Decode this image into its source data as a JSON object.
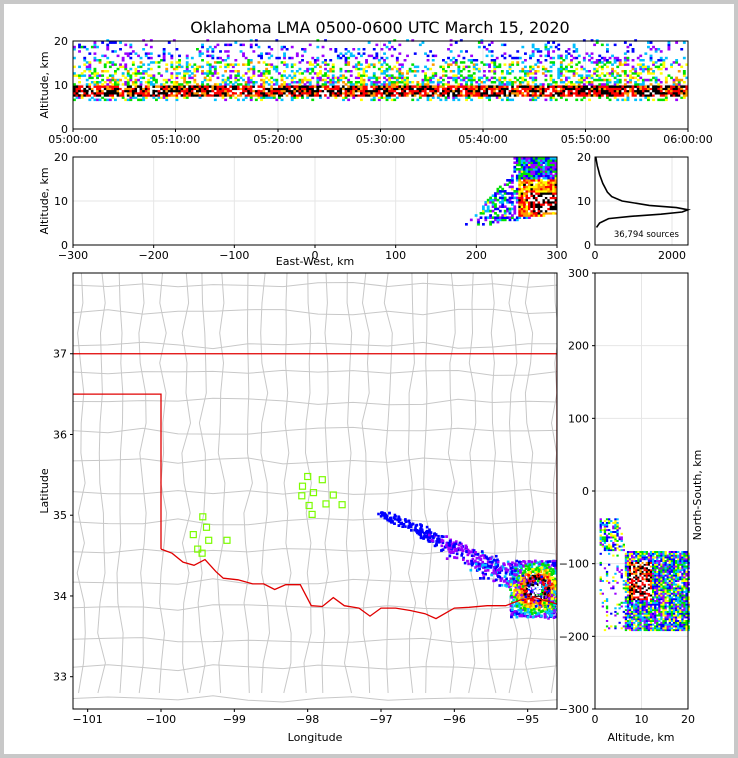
{
  "title": "Oklahoma LMA 0500-0600 UTC March 15, 2020",
  "colors": {
    "state_border": "#e00000",
    "county_lines": "#c8c8c8",
    "stations": "#7cfc00",
    "density_scale": [
      "#0000ff",
      "#9900ff",
      "#00bfff",
      "#00e000",
      "#ffff00",
      "#ff9900",
      "#ff0000",
      "#000000",
      "#ffffff"
    ]
  },
  "chart_data": [
    {
      "id": "time_altitude",
      "type": "heatmap",
      "xlabel": "",
      "ylabel": "Altitude, km",
      "xlim": [
        "05:00:00",
        "06:00:00"
      ],
      "ylim": [
        0,
        20
      ],
      "x_ticks": [
        "05:00:00",
        "05:10:00",
        "05:20:00",
        "05:30:00",
        "05:40:00",
        "05:50:00",
        "06:00:00"
      ],
      "y_ticks": [
        "0",
        "10",
        "20"
      ],
      "band_center_altitude_km": 8,
      "band_top_altitude_km": 20,
      "band_bottom_altitude_km": 6
    },
    {
      "id": "eastwest_altitude",
      "type": "heatmap",
      "xlabel": "East-West, km",
      "ylabel": "Altitude, km",
      "xlim": [
        -300,
        300
      ],
      "ylim": [
        0,
        20
      ],
      "x_ticks": [
        "−300",
        "−200",
        "−100",
        "0",
        "100",
        "200",
        "300"
      ],
      "y_ticks": [
        "0",
        "10",
        "20"
      ],
      "core_east_west_km": [
        250,
        300
      ],
      "core_altitude_km": [
        7,
        12
      ]
    },
    {
      "id": "altitude_histogram",
      "type": "line",
      "xlabel": "",
      "ylabel": "",
      "xlim": [
        0,
        2400
      ],
      "ylim": [
        0,
        20
      ],
      "x_ticks": [
        "0",
        "2000"
      ],
      "y_ticks": [
        "0",
        "10",
        "20"
      ],
      "annotation": "36,794 sources",
      "altitude_km": [
        4,
        5,
        6,
        6.5,
        7,
        7.5,
        8,
        8.5,
        9,
        10,
        11,
        12,
        13,
        14,
        15,
        16,
        17,
        18,
        19,
        20
      ],
      "count": [
        40,
        120,
        350,
        900,
        1700,
        2250,
        2400,
        2100,
        1400,
        700,
        430,
        320,
        260,
        200,
        160,
        120,
        90,
        60,
        40,
        20
      ]
    },
    {
      "id": "plan_view_map",
      "type": "scatter",
      "xlabel": "Longitude",
      "ylabel": "Latitude",
      "xlim": [
        -101.2,
        -94.6
      ],
      "ylim": [
        32.6,
        38.0
      ],
      "x_ticks": [
        "−101",
        "−100",
        "−99",
        "−98",
        "−97",
        "−96",
        "−95"
      ],
      "y_ticks": [
        "33",
        "34",
        "35",
        "36",
        "37"
      ],
      "stations": [
        {
          "lon": -98.0,
          "lat": 35.48
        },
        {
          "lon": -97.8,
          "lat": 35.44
        },
        {
          "lon": -98.07,
          "lat": 35.36
        },
        {
          "lon": -97.92,
          "lat": 35.28
        },
        {
          "lon": -98.08,
          "lat": 35.24
        },
        {
          "lon": -97.65,
          "lat": 35.25
        },
        {
          "lon": -97.98,
          "lat": 35.12
        },
        {
          "lon": -97.75,
          "lat": 35.14
        },
        {
          "lon": -97.53,
          "lat": 35.13
        },
        {
          "lon": -97.94,
          "lat": 35.01
        },
        {
          "lon": -99.43,
          "lat": 34.98
        },
        {
          "lon": -99.38,
          "lat": 34.85
        },
        {
          "lon": -99.56,
          "lat": 34.76
        },
        {
          "lon": -99.35,
          "lat": 34.69
        },
        {
          "lon": -99.1,
          "lat": 34.69
        },
        {
          "lon": -99.5,
          "lat": 34.58
        },
        {
          "lon": -99.44,
          "lat": 34.53
        }
      ],
      "storm_core": {
        "lon": -94.9,
        "lat": 34.1
      }
    },
    {
      "id": "northsouth_altitude",
      "type": "heatmap",
      "xlabel": "Altitude, km",
      "ylabel": "North-South, km",
      "xlim": [
        0,
        20
      ],
      "ylim": [
        -300,
        300
      ],
      "x_ticks": [
        "0",
        "10",
        "20"
      ],
      "y_ticks": [
        "300",
        "200",
        "100",
        "0",
        "−100",
        "−200",
        "−300"
      ],
      "core_north_south_km": [
        -150,
        -90
      ],
      "core_altitude_km": [
        7,
        12
      ]
    }
  ]
}
